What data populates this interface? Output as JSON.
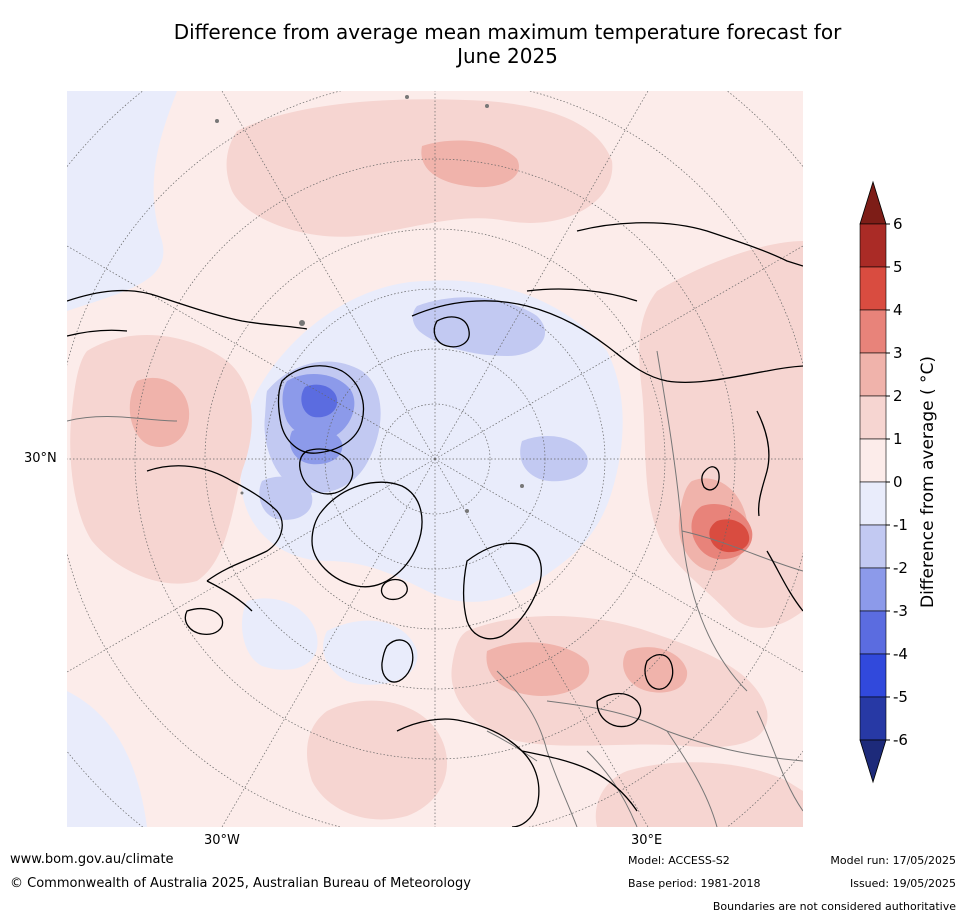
{
  "title_line1": "Difference from average mean maximum temperature forecast for",
  "title_line2": "June 2025",
  "map": {
    "projection": "north-polar-stereographic",
    "lat_labels": [
      "30°N"
    ],
    "lon_labels": [
      "30°W",
      "30°E"
    ],
    "features": [
      "coastlines",
      "country-borders",
      "graticule"
    ]
  },
  "colorbar": {
    "label": "Difference from average ( °C)",
    "ticks": [
      "6",
      "5",
      "4",
      "3",
      "2",
      "1",
      "0",
      "-1",
      "-2",
      "-3",
      "-4",
      "-5",
      "-6"
    ],
    "colors_top_to_bottom": [
      "#7d1d17",
      "#aa2b26",
      "#d94c40",
      "#e8837a",
      "#f0b3ab",
      "#f6d5d1",
      "#fcecea",
      "#e9ecfb",
      "#c2c9f2",
      "#8c9aea",
      "#5b6ce0",
      "#3149dc",
      "#2739a5",
      "#1d2a7a"
    ],
    "arrows": [
      "above 6",
      "below -6"
    ]
  },
  "footer": {
    "website": "www.bom.gov.au/climate",
    "copyright": "© Commonwealth of Australia 2025, Australian Bureau of Meteorology",
    "model": "Model: ACCESS-S2",
    "base_period": "Base period: 1981-2018",
    "model_run": "Model run: 17/05/2025",
    "issued": "Issued: 19/05/2025",
    "disclaimer": "Boundaries are not considered authoritative"
  }
}
